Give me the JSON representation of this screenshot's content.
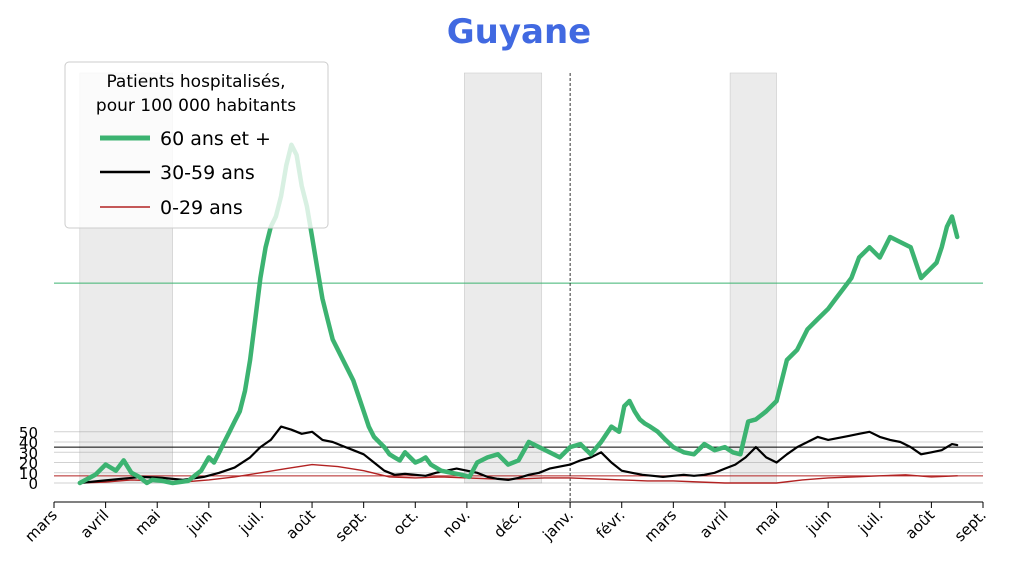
{
  "chart_data": {
    "type": "line",
    "title": "Guyane",
    "title_color": "#4169e1",
    "xlabel": "",
    "ylabel": "",
    "x_tick_labels": [
      "mars",
      "avril",
      "mai",
      "juin",
      "juil.",
      "août",
      "sept.",
      "oct.",
      "nov.",
      "déc.",
      "janv.",
      "févr.",
      "mars",
      "avril",
      "mai",
      "juin",
      "juil.",
      "août",
      "sept."
    ],
    "y_tick_labels": [
      "0",
      "10",
      "20",
      "30",
      "40",
      "50"
    ],
    "y_tick_values": [
      0,
      10,
      20,
      30,
      40,
      50
    ],
    "xlim_month_index": [
      0,
      18
    ],
    "ylim": [
      -22,
      400
    ],
    "grid_y": true,
    "shaded_periods_month_index": [
      [
        0.5,
        2.3
      ],
      [
        7.95,
        9.45
      ],
      [
        13.1,
        14.0
      ]
    ],
    "vertical_reference_month_index": 10,
    "legend": {
      "placement": "top-left",
      "title": "Patients hospitalisés,\npour 100 000 habitants",
      "title_lines": [
        "Patients hospitalisés,",
        "pour 100 000 habitants"
      ]
    },
    "series": [
      {
        "name": "60 ans et +",
        "color": "#3cb371",
        "reference_level": 195,
        "x_month_index": [
          0.5,
          0.8,
          1.0,
          1.2,
          1.35,
          1.5,
          1.65,
          1.8,
          1.9,
          2.1,
          2.3,
          2.6,
          2.85,
          3.0,
          3.1,
          3.2,
          3.3,
          3.4,
          3.5,
          3.6,
          3.7,
          3.8,
          3.9,
          4.0,
          4.1,
          4.2,
          4.3,
          4.4,
          4.5,
          4.6,
          4.7,
          4.8,
          4.9,
          5.0,
          5.1,
          5.2,
          5.3,
          5.4,
          5.5,
          5.6,
          5.7,
          5.8,
          5.9,
          6.0,
          6.1,
          6.2,
          6.3,
          6.4,
          6.5,
          6.6,
          6.7,
          6.8,
          6.9,
          7.0,
          7.1,
          7.2,
          7.3,
          7.4,
          7.5,
          7.7,
          7.9,
          8.05,
          8.2,
          8.4,
          8.6,
          8.8,
          9.0,
          9.2,
          9.4,
          9.6,
          9.8,
          10.0,
          10.2,
          10.4,
          10.6,
          10.8,
          10.95,
          11.05,
          11.15,
          11.25,
          11.35,
          11.45,
          11.55,
          11.7,
          11.85,
          12.0,
          12.2,
          12.4,
          12.6,
          12.8,
          13.0,
          13.15,
          13.3,
          13.45,
          13.6,
          13.8,
          14.0,
          14.2,
          14.4,
          14.6,
          14.8,
          15.0,
          15.15,
          15.3,
          15.45,
          15.6,
          15.8,
          16.0,
          16.2,
          16.4,
          16.6,
          16.8,
          17.0,
          17.1,
          17.2,
          17.3,
          17.4,
          17.5
        ],
        "values": [
          0,
          8,
          18,
          12,
          22,
          10,
          6,
          0,
          3,
          2,
          0,
          2,
          12,
          25,
          20,
          30,
          40,
          50,
          60,
          70,
          90,
          120,
          160,
          200,
          230,
          250,
          260,
          280,
          310,
          330,
          320,
          290,
          270,
          240,
          210,
          180,
          160,
          140,
          130,
          120,
          110,
          100,
          85,
          70,
          55,
          45,
          40,
          35,
          28,
          25,
          22,
          30,
          25,
          20,
          22,
          25,
          18,
          15,
          12,
          10,
          8,
          6,
          20,
          25,
          28,
          18,
          22,
          40,
          35,
          30,
          25,
          35,
          38,
          28,
          40,
          55,
          50,
          75,
          80,
          70,
          62,
          58,
          55,
          50,
          42,
          35,
          30,
          28,
          38,
          32,
          35,
          30,
          28,
          60,
          62,
          70,
          80,
          120,
          130,
          150,
          160,
          170,
          180,
          190,
          200,
          220,
          230,
          220,
          240,
          235,
          230,
          200,
          210,
          215,
          230,
          250,
          260,
          240,
          195,
          190
        ]
      },
      {
        "name": "30-59 ans",
        "color": "#000000",
        "reference_level": 35,
        "x_month_index": [
          0.5,
          0.9,
          1.3,
          1.7,
          2.1,
          2.5,
          2.9,
          3.2,
          3.5,
          3.8,
          4.0,
          4.2,
          4.4,
          4.6,
          4.8,
          5.0,
          5.2,
          5.4,
          5.6,
          5.8,
          6.0,
          6.2,
          6.4,
          6.6,
          6.8,
          7.0,
          7.2,
          7.4,
          7.6,
          7.8,
          8.0,
          8.2,
          8.4,
          8.6,
          8.8,
          9.0,
          9.2,
          9.4,
          9.6,
          9.8,
          10.0,
          10.2,
          10.4,
          10.6,
          10.8,
          11.0,
          11.2,
          11.4,
          11.6,
          11.8,
          12.0,
          12.2,
          12.4,
          12.6,
          12.8,
          13.0,
          13.2,
          13.4,
          13.6,
          13.8,
          14.0,
          14.2,
          14.4,
          14.6,
          14.8,
          15.0,
          15.2,
          15.4,
          15.6,
          15.8,
          16.0,
          16.2,
          16.4,
          16.6,
          16.8,
          17.0,
          17.2,
          17.4,
          17.5
        ],
        "values": [
          0,
          2,
          4,
          6,
          5,
          3,
          6,
          10,
          15,
          25,
          35,
          42,
          55,
          52,
          48,
          50,
          42,
          40,
          36,
          32,
          28,
          20,
          12,
          8,
          9,
          8,
          7,
          10,
          12,
          14,
          12,
          10,
          6,
          4,
          3,
          5,
          8,
          10,
          14,
          16,
          18,
          22,
          25,
          30,
          20,
          12,
          10,
          8,
          7,
          6,
          7,
          8,
          7,
          8,
          10,
          14,
          18,
          25,
          35,
          25,
          20,
          28,
          35,
          40,
          45,
          42,
          44,
          46,
          48,
          50,
          45,
          42,
          40,
          35,
          28,
          30,
          32,
          38,
          37
        ]
      },
      {
        "name": "0-29 ans",
        "color": "#b22222",
        "reference_level": 7,
        "x_month_index": [
          0.5,
          1.0,
          1.5,
          2.0,
          2.5,
          3.0,
          3.5,
          4.0,
          4.5,
          5.0,
          5.5,
          6.0,
          6.5,
          7.0,
          7.5,
          8.0,
          8.5,
          9.0,
          9.5,
          10.0,
          10.5,
          11.0,
          11.5,
          12.0,
          12.5,
          13.0,
          13.5,
          14.0,
          14.5,
          15.0,
          15.5,
          16.0,
          16.5,
          17.0,
          17.5
        ],
        "values": [
          0,
          1,
          3,
          2,
          1,
          3,
          6,
          10,
          14,
          18,
          16,
          12,
          6,
          5,
          6,
          5,
          4,
          4,
          5,
          5,
          4,
          3,
          2,
          2,
          1,
          0,
          0,
          0,
          3,
          5,
          6,
          7,
          8,
          6,
          7
        ]
      }
    ]
  }
}
